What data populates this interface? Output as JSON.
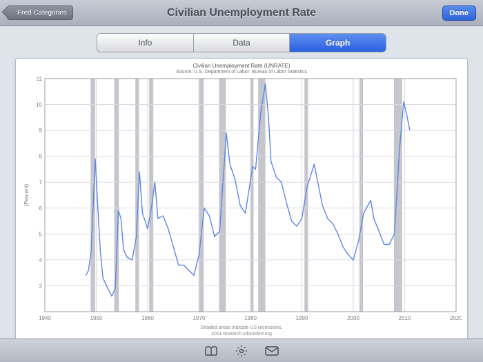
{
  "header": {
    "back_label": "Fred Categories",
    "title": "Civilian Unemployment Rate",
    "done_label": "Done"
  },
  "tabs": {
    "items": [
      "Info",
      "Data",
      "Graph"
    ],
    "active_index": 2
  },
  "chart": {
    "type": "line",
    "title": "Civilian Unemployment Rate (UNRATE)",
    "source": "Source: U.S. Department of Labor: Bureau of Labor Statistics",
    "footer_line1": "Shaded areas indicate US recessions.",
    "footer_line2": "2011 research.stlouisfed.org",
    "ylabel": "(Percent)",
    "ylabel_fontsize": 8,
    "title_fontsize": 8,
    "x": {
      "min": 1940,
      "max": 2020,
      "ticks": [
        1940,
        1950,
        1960,
        1970,
        1980,
        1990,
        2000,
        2010,
        2020
      ]
    },
    "y": {
      "min": 2,
      "max": 11,
      "ticks": [
        3,
        4,
        5,
        6,
        7,
        8,
        9,
        10,
        11
      ]
    },
    "line_color": "#5a86e6",
    "line_width": 1.4,
    "grid_color": "#d8dadf",
    "axis_color": "#9a9ea6",
    "tick_label_fontsize": 8,
    "tick_label_color": "#808080",
    "background_color": "#ffffff",
    "recession_fill": "#c4c6cb",
    "recessions": [
      [
        1948.9,
        1949.8
      ],
      [
        1953.5,
        1954.4
      ],
      [
        1957.6,
        1958.3
      ],
      [
        1960.3,
        1961.1
      ],
      [
        1969.9,
        1970.9
      ],
      [
        1973.9,
        1975.2
      ],
      [
        1980.0,
        1980.6
      ],
      [
        1981.5,
        1982.9
      ],
      [
        1990.5,
        1991.2
      ],
      [
        2001.2,
        2001.9
      ],
      [
        2007.9,
        2009.5
      ]
    ],
    "series": [
      [
        1948.0,
        3.4
      ],
      [
        1948.5,
        3.6
      ],
      [
        1949.0,
        4.3
      ],
      [
        1949.8,
        7.9
      ],
      [
        1950.2,
        6.4
      ],
      [
        1950.8,
        4.3
      ],
      [
        1951.3,
        3.3
      ],
      [
        1952.0,
        3.0
      ],
      [
        1953.0,
        2.6
      ],
      [
        1953.7,
        2.9
      ],
      [
        1954.3,
        5.9
      ],
      [
        1954.8,
        5.6
      ],
      [
        1955.3,
        4.4
      ],
      [
        1956.0,
        4.1
      ],
      [
        1957.0,
        4.0
      ],
      [
        1957.8,
        4.9
      ],
      [
        1958.4,
        7.4
      ],
      [
        1959.0,
        5.8
      ],
      [
        1960.0,
        5.2
      ],
      [
        1960.8,
        6.1
      ],
      [
        1961.4,
        7.0
      ],
      [
        1962.0,
        5.6
      ],
      [
        1963.0,
        5.7
      ],
      [
        1964.0,
        5.2
      ],
      [
        1965.0,
        4.5
      ],
      [
        1966.0,
        3.8
      ],
      [
        1967.0,
        3.8
      ],
      [
        1968.0,
        3.6
      ],
      [
        1969.0,
        3.4
      ],
      [
        1970.0,
        4.2
      ],
      [
        1971.0,
        6.0
      ],
      [
        1972.0,
        5.7
      ],
      [
        1973.0,
        4.9
      ],
      [
        1974.0,
        5.1
      ],
      [
        1975.3,
        8.9
      ],
      [
        1976.0,
        7.7
      ],
      [
        1977.0,
        7.1
      ],
      [
        1978.0,
        6.1
      ],
      [
        1979.0,
        5.8
      ],
      [
        1980.4,
        7.6
      ],
      [
        1981.0,
        7.5
      ],
      [
        1982.0,
        9.7
      ],
      [
        1982.9,
        10.8
      ],
      [
        1983.5,
        9.5
      ],
      [
        1984.0,
        7.8
      ],
      [
        1985.0,
        7.2
      ],
      [
        1986.0,
        7.0
      ],
      [
        1987.0,
        6.2
      ],
      [
        1988.0,
        5.5
      ],
      [
        1989.0,
        5.3
      ],
      [
        1990.0,
        5.6
      ],
      [
        1991.0,
        6.8
      ],
      [
        1992.4,
        7.7
      ],
      [
        1993.0,
        7.1
      ],
      [
        1994.0,
        6.1
      ],
      [
        1995.0,
        5.6
      ],
      [
        1996.0,
        5.4
      ],
      [
        1997.0,
        5.0
      ],
      [
        1998.0,
        4.5
      ],
      [
        1999.0,
        4.2
      ],
      [
        2000.0,
        4.0
      ],
      [
        2001.0,
        4.7
      ],
      [
        2002.0,
        5.8
      ],
      [
        2003.4,
        6.3
      ],
      [
        2004.0,
        5.6
      ],
      [
        2005.0,
        5.1
      ],
      [
        2006.0,
        4.6
      ],
      [
        2007.0,
        4.6
      ],
      [
        2008.0,
        5.0
      ],
      [
        2009.0,
        8.3
      ],
      [
        2009.8,
        10.1
      ],
      [
        2010.4,
        9.6
      ],
      [
        2011.0,
        9.0
      ]
    ]
  },
  "toolbar": {
    "icons": [
      "bookmarks",
      "settings",
      "mail"
    ]
  }
}
